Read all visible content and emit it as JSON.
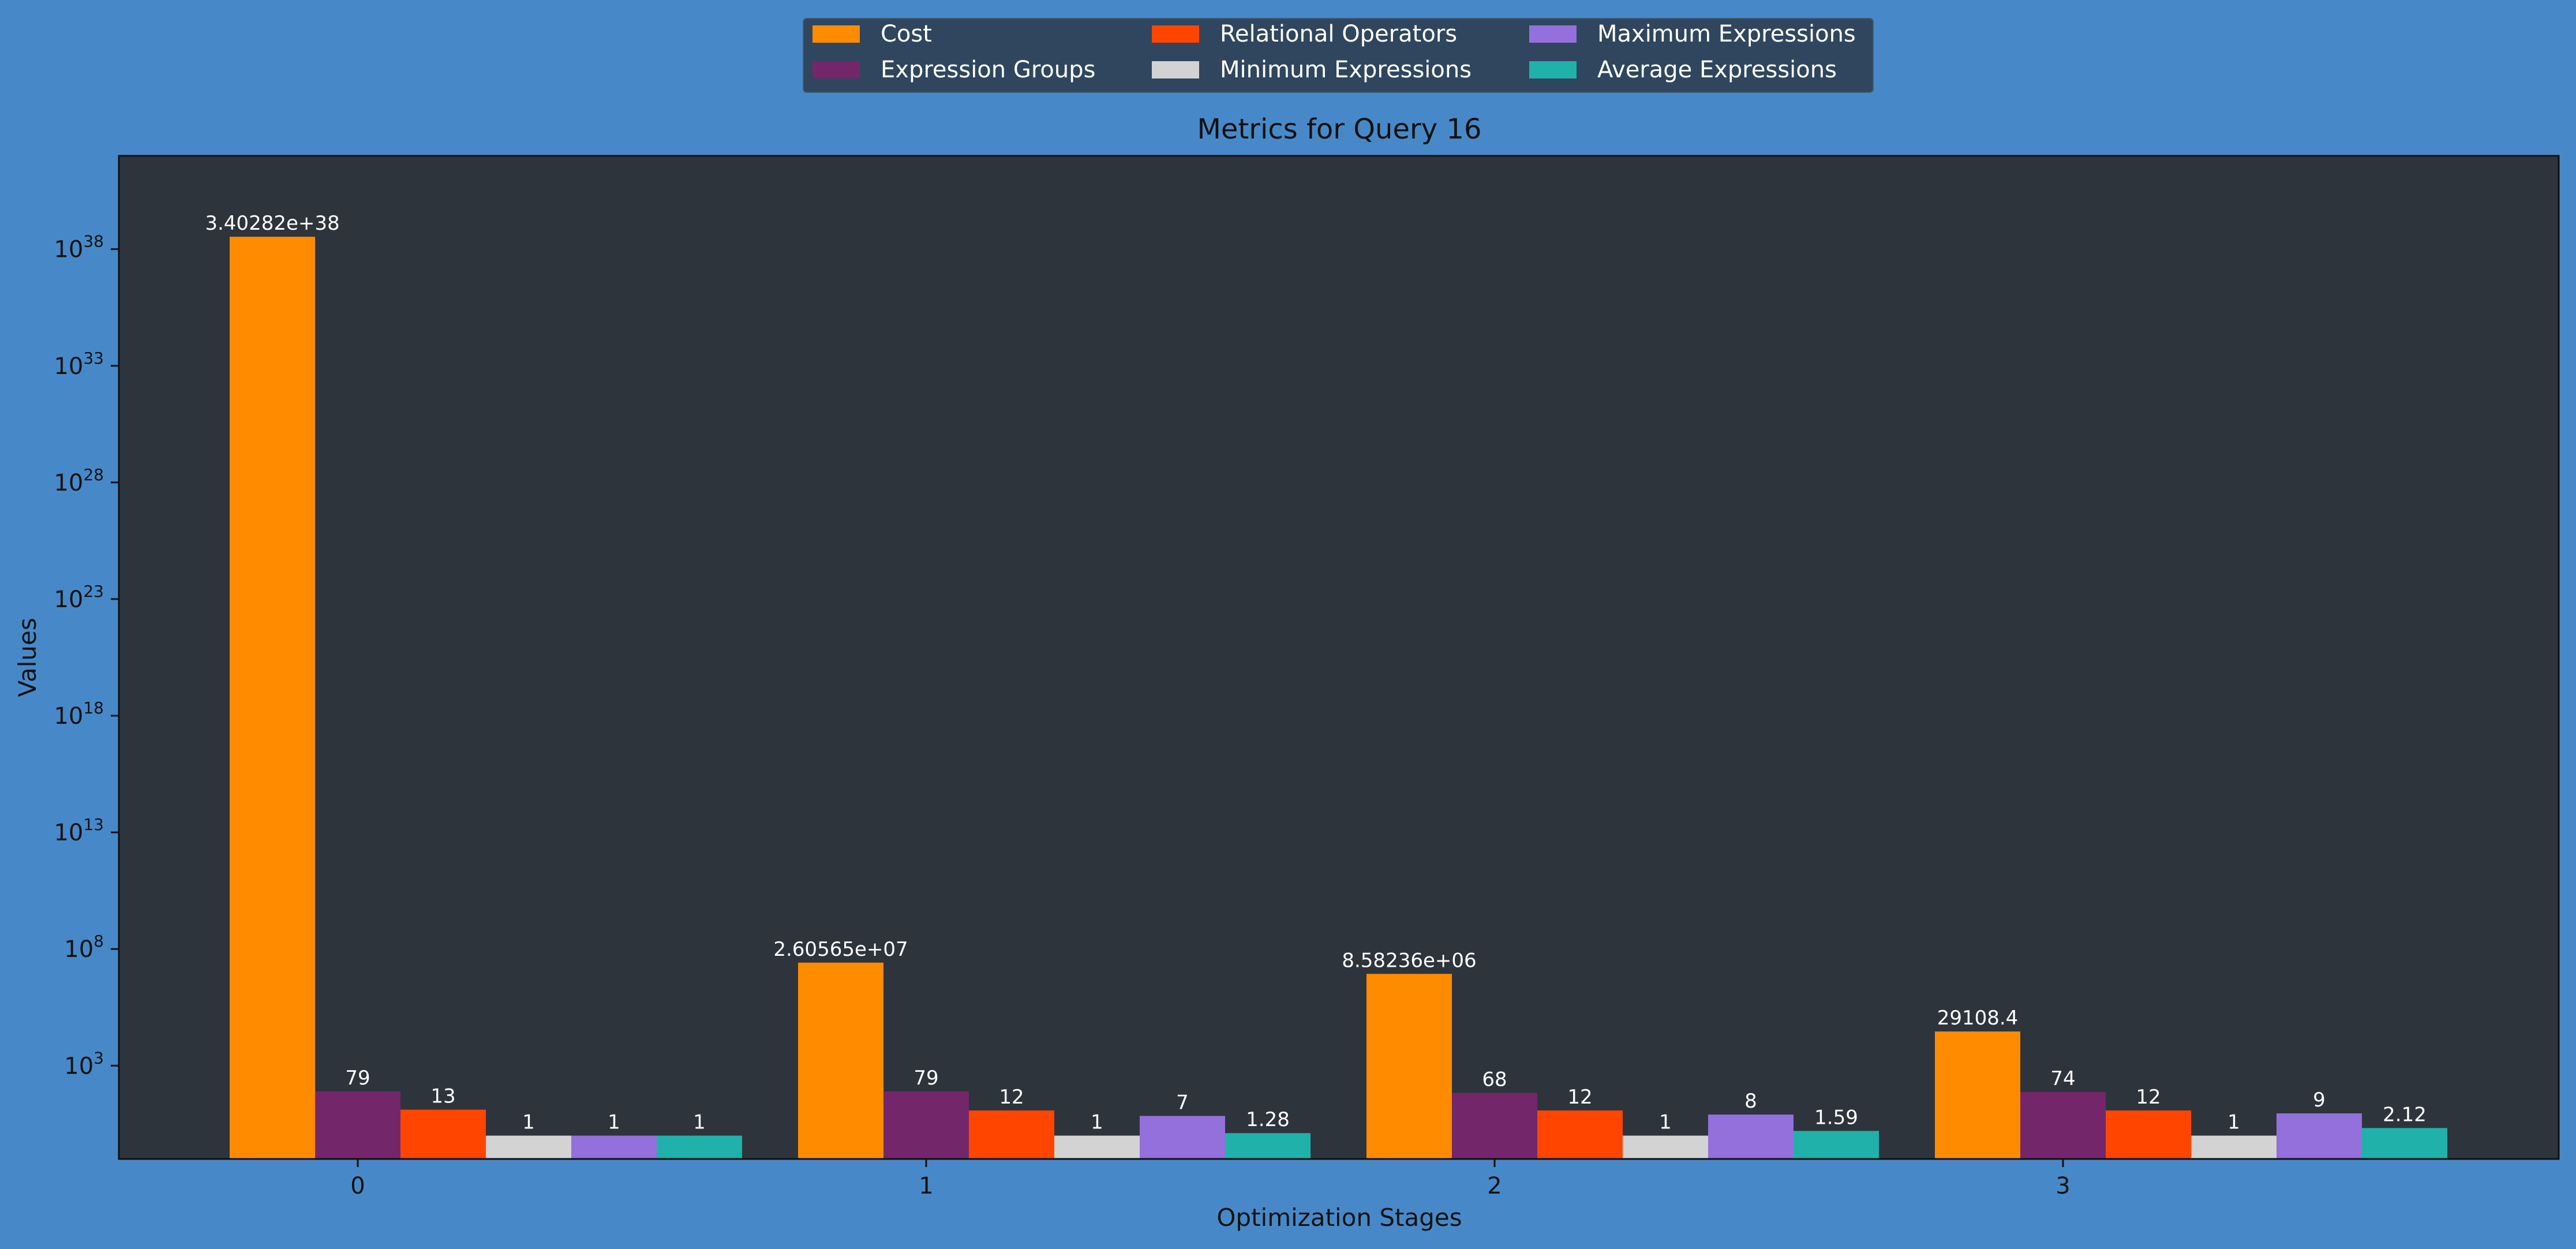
{
  "colors": {
    "page_background": "#4789c8",
    "plot_background": "#2e343c",
    "legend_background": "#2f465e",
    "text": "#111111",
    "label_text": "#ffffff"
  },
  "chart_data": {
    "type": "bar",
    "title": "Metrics for Query 16",
    "xlabel": "Optimization Stages",
    "ylabel": "Values",
    "yscale": "log",
    "ylim": [
      0.1,
      1e+42
    ],
    "yticks": [
      {
        "exp": "3",
        "value": 1000.0
      },
      {
        "exp": "8",
        "value": 100000000.0
      },
      {
        "exp": "13",
        "value": 10000000000000.0
      },
      {
        "exp": "18",
        "value": 1e+18
      },
      {
        "exp": "23",
        "value": 1e+23
      },
      {
        "exp": "28",
        "value": 1e+28
      },
      {
        "exp": "33",
        "value": 1e+33
      },
      {
        "exp": "38",
        "value": 1e+38
      }
    ],
    "tick_base": "10",
    "categories": [
      "0",
      "1",
      "2",
      "3"
    ],
    "legend_position": "top-center, above plot",
    "grid": false,
    "series": [
      {
        "name": "Cost",
        "color": "#ff8c00",
        "values": [
          3.40282e+38,
          26056500,
          8582360,
          29108.4
        ],
        "labels": [
          "3.40282e+38",
          "2.60565e+07",
          "8.58236e+06",
          "29108.4"
        ]
      },
      {
        "name": "Expression Groups",
        "color": "#74266b",
        "values": [
          79,
          79,
          68,
          74
        ],
        "labels": [
          "79",
          "79",
          "68",
          "74"
        ]
      },
      {
        "name": "Relational Operators",
        "color": "#ff4500",
        "values": [
          13,
          12,
          12,
          12
        ],
        "labels": [
          "13",
          "12",
          "12",
          "12"
        ]
      },
      {
        "name": "Minimum Expressions",
        "color": "#d3d3d3",
        "values": [
          1,
          1,
          1,
          1
        ],
        "labels": [
          "1",
          "1",
          "1",
          "1"
        ]
      },
      {
        "name": "Maximum Expressions",
        "color": "#9370db",
        "values": [
          1,
          7,
          8,
          9
        ],
        "labels": [
          "1",
          "7",
          "8",
          "9"
        ]
      },
      {
        "name": "Average Expressions",
        "color": "#20b2aa",
        "values": [
          1,
          1.28,
          1.59,
          2.12
        ],
        "labels": [
          "1",
          "1.28",
          "1.59",
          "2.12"
        ]
      }
    ]
  }
}
